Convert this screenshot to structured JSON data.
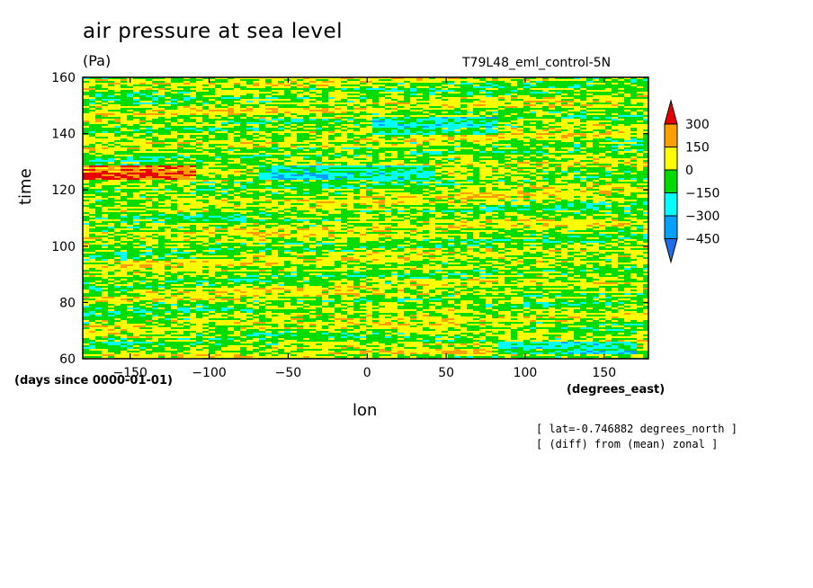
{
  "chart_data": {
    "type": "heatmap",
    "title": "air pressure at sea level",
    "units": "(Pa)",
    "run_label": "T79L48_eml_control-5N",
    "xlabel": "lon",
    "ylabel": "time",
    "x_units": "(degrees_east)",
    "y_units": "(days since 0000-01-01)",
    "xlim": [
      -180,
      178
    ],
    "ylim": [
      60,
      160
    ],
    "x_ticks": [
      -150,
      -100,
      -50,
      0,
      50,
      100,
      150
    ],
    "y_ticks": [
      60,
      80,
      100,
      120,
      140,
      160
    ],
    "colorbar": {
      "levels": [
        -450,
        -300,
        -150,
        0,
        150,
        300
      ],
      "labels": [
        "300",
        "150",
        "0",
        "-150",
        "-300",
        "-450"
      ],
      "colors": [
        "#1e6eeb",
        "#00a0ff",
        "#00ffff",
        "#00dc00",
        "#ffff00",
        "#ffa000",
        "#e60000"
      ]
    },
    "annotations": [
      "[ lat=-0.746882 degrees_north ]",
      "[ (diff) from (mean) zonal ]"
    ]
  },
  "labels": {
    "title": "air pressure at sea level",
    "units": "(Pa)",
    "run": "T79L48_eml_control-5N",
    "xlabel": "lon",
    "ylabel": "time",
    "yunits": "(days since 0000-01-01)",
    "xunits": "(degrees_east)",
    "note1": "[ lat=-0.746882 degrees_north ]",
    "note2": "[ (diff) from (mean) zonal ]"
  }
}
